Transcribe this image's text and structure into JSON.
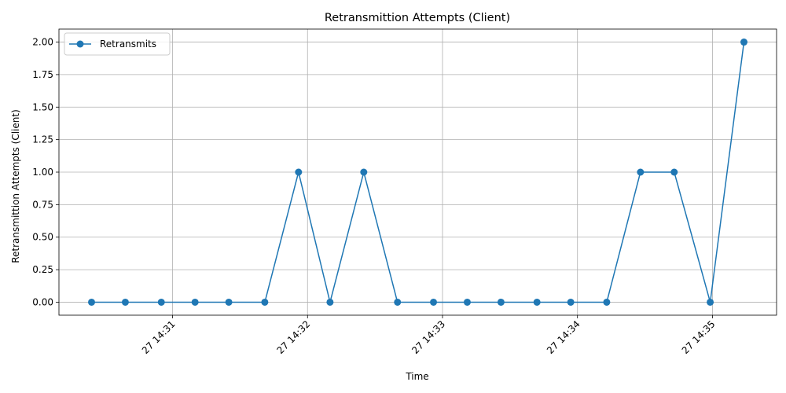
{
  "chart_data": {
    "type": "line",
    "title": "Retransmittion Attempts (Client)",
    "xlabel": "Time",
    "ylabel": "Retransmittion Attempts (Client)",
    "x_tick_labels": [
      "27 14:31",
      "27 14:32",
      "27 14:33",
      "27 14:34",
      "27 14:35"
    ],
    "y_tick_labels": [
      "0.00",
      "0.25",
      "0.50",
      "0.75",
      "1.00",
      "1.25",
      "1.50",
      "1.75",
      "2.00"
    ],
    "ylim": [
      -0.1,
      2.1
    ],
    "grid": true,
    "legend_position": "upper-left",
    "series": [
      {
        "name": "Retransmits",
        "color": "#1f77b4",
        "marker": "circle",
        "x": [
          "14:30:24",
          "14:30:39",
          "14:30:55",
          "14:31:10",
          "14:31:25",
          "14:31:41",
          "14:31:56",
          "14:32:10",
          "14:32:25",
          "14:32:40",
          "14:32:56",
          "14:33:11",
          "14:33:26",
          "14:33:42",
          "14:33:57",
          "14:34:13",
          "14:34:28",
          "14:34:43",
          "14:34:59",
          "14:35:14"
        ],
        "values": [
          0,
          0,
          0,
          0,
          0,
          0,
          1,
          0,
          1,
          0,
          0,
          0,
          0,
          0,
          0,
          0,
          1,
          1,
          0,
          2
        ]
      }
    ]
  }
}
